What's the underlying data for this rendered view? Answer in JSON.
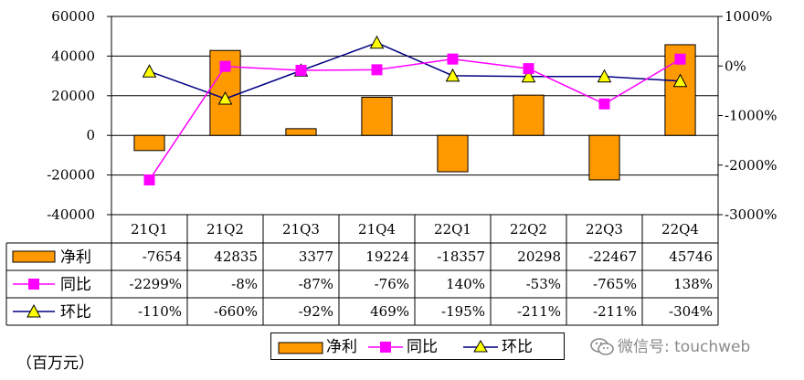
{
  "chart_data": {
    "type": "bar+line",
    "categories": [
      "21Q1",
      "21Q2",
      "21Q3",
      "21Q4",
      "22Q1",
      "22Q2",
      "22Q3",
      "22Q4"
    ],
    "series": [
      {
        "name": "净利",
        "kind": "bar",
        "axis": "left",
        "color": "#ff9900",
        "values": [
          -7654,
          42835,
          3377,
          19224,
          -18357,
          20298,
          -22467,
          45746
        ],
        "labels": [
          "-7654",
          "42835",
          "3377",
          "19224",
          "-18357",
          "20298",
          "-22467",
          "45746"
        ]
      },
      {
        "name": "同比",
        "kind": "line",
        "axis": "right",
        "color": "#ff00ff",
        "unit": "%",
        "values": [
          -2299,
          -8,
          -87,
          -76,
          140,
          -53,
          -765,
          138
        ],
        "labels": [
          "-2299%",
          "-8%",
          "-87%",
          "-76%",
          "140%",
          "-53%",
          "-765%",
          "138%"
        ]
      },
      {
        "name": "环比",
        "kind": "line",
        "axis": "right",
        "color": "#000080",
        "marker_color": "#ffff00",
        "unit": "%",
        "values": [
          -110,
          -660,
          -92,
          469,
          -195,
          -211,
          -211,
          -304
        ],
        "labels": [
          "-110%",
          "-660%",
          "-92%",
          "469%",
          "-195%",
          "-211%",
          "-211%",
          "-304%"
        ]
      }
    ],
    "ylim_left": [
      -40000,
      60000
    ],
    "yticks_left": [
      "60000",
      "40000",
      "20000",
      "0",
      "-20000",
      "-40000"
    ],
    "ylim_right": [
      -3000,
      1000
    ],
    "yticks_right": [
      "1000%",
      "0%",
      "-1000%",
      "-2000%",
      "-3000%"
    ],
    "grid": true,
    "legend_position": "bottom"
  },
  "unit_label": "（百万元）",
  "watermark_text": "微信号: touchweb"
}
